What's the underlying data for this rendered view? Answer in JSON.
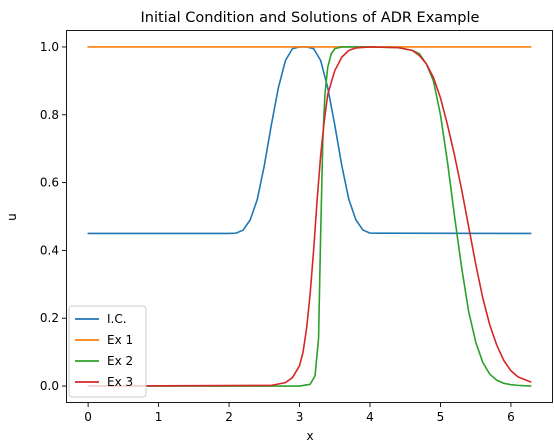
{
  "chart_data": {
    "type": "line",
    "title": "Initial Condition and Solutions of ADR Example",
    "xlabel": "x",
    "ylabel": "u",
    "xlim": [
      -0.314,
      6.597
    ],
    "ylim": [
      -0.05,
      1.05
    ],
    "xticks": [
      0,
      1,
      2,
      3,
      4,
      5,
      6
    ],
    "yticks": [
      0.0,
      0.2,
      0.4,
      0.6,
      0.8,
      1.0
    ],
    "xtick_labels": [
      "0",
      "1",
      "2",
      "3",
      "4",
      "5",
      "6"
    ],
    "ytick_labels": [
      "0.0",
      "0.2",
      "0.4",
      "0.6",
      "0.8",
      "1.0"
    ],
    "grid": false,
    "legend_position": "lower-left",
    "series": [
      {
        "name": "I.C.",
        "color": "#1f77b4",
        "x": [
          0,
          2.0,
          2.1,
          2.2,
          2.3,
          2.4,
          2.5,
          2.6,
          2.7,
          2.8,
          2.9,
          3.0,
          3.1,
          3.2,
          3.3,
          3.4,
          3.5,
          3.6,
          3.7,
          3.8,
          3.9,
          4.0,
          6.28
        ],
        "y": [
          0.45,
          0.45,
          0.451,
          0.46,
          0.49,
          0.55,
          0.65,
          0.77,
          0.88,
          0.96,
          0.995,
          1.0,
          1.0,
          0.995,
          0.96,
          0.88,
          0.77,
          0.65,
          0.55,
          0.49,
          0.46,
          0.451,
          0.45
        ]
      },
      {
        "name": "Ex 1",
        "color": "#ff7f0e",
        "x": [
          0,
          6.28
        ],
        "y": [
          1.0,
          1.0
        ]
      },
      {
        "name": "Ex 2",
        "color": "#2ca02c",
        "x": [
          0,
          3.0,
          3.15,
          3.22,
          3.27,
          3.3,
          3.33,
          3.36,
          3.4,
          3.45,
          3.5,
          3.6,
          3.8,
          4.0,
          4.4,
          4.6,
          4.7,
          4.8,
          4.9,
          5.0,
          5.1,
          5.2,
          5.3,
          5.4,
          5.5,
          5.6,
          5.7,
          5.8,
          5.9,
          6.0,
          6.1,
          6.28
        ],
        "y": [
          0.0,
          0.0,
          0.005,
          0.03,
          0.14,
          0.45,
          0.72,
          0.86,
          0.94,
          0.98,
          0.995,
          1.0,
          1.0,
          1.0,
          0.998,
          0.99,
          0.98,
          0.95,
          0.9,
          0.8,
          0.66,
          0.5,
          0.35,
          0.22,
          0.13,
          0.07,
          0.035,
          0.017,
          0.008,
          0.004,
          0.002,
          0.0
        ]
      },
      {
        "name": "Ex 3",
        "color": "#d62728",
        "x": [
          0,
          2.6,
          2.8,
          2.9,
          3.0,
          3.05,
          3.1,
          3.15,
          3.2,
          3.25,
          3.3,
          3.35,
          3.4,
          3.5,
          3.6,
          3.7,
          3.8,
          4.0,
          4.4,
          4.6,
          4.7,
          4.8,
          4.9,
          5.0,
          5.1,
          5.2,
          5.3,
          5.4,
          5.5,
          5.6,
          5.7,
          5.8,
          5.9,
          6.0,
          6.1,
          6.28
        ],
        "y": [
          0.0,
          0.002,
          0.01,
          0.025,
          0.06,
          0.1,
          0.17,
          0.27,
          0.4,
          0.55,
          0.68,
          0.78,
          0.86,
          0.93,
          0.97,
          0.99,
          0.997,
          1.0,
          0.998,
          0.99,
          0.975,
          0.95,
          0.91,
          0.85,
          0.77,
          0.68,
          0.58,
          0.47,
          0.36,
          0.26,
          0.18,
          0.12,
          0.075,
          0.045,
          0.027,
          0.012
        ]
      }
    ]
  }
}
